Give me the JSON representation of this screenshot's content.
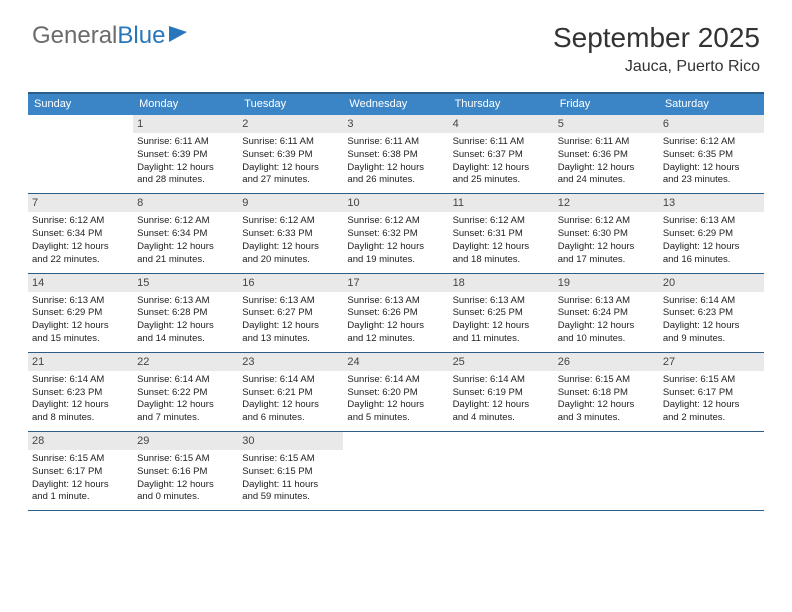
{
  "logo": {
    "text1": "General",
    "text2": "Blue"
  },
  "title": "September 2025",
  "location": "Jauca, Puerto Rico",
  "colors": {
    "header_bg": "#3b85c6",
    "header_border": "#2a5d87",
    "daynum_bg": "#e9e9e9",
    "logo_gray": "#6b6b6b",
    "logo_blue": "#2977bb"
  },
  "day_names": [
    "Sunday",
    "Monday",
    "Tuesday",
    "Wednesday",
    "Thursday",
    "Friday",
    "Saturday"
  ],
  "weeks": [
    [
      {
        "n": "",
        "empty": true
      },
      {
        "n": "1",
        "sr": "Sunrise: 6:11 AM",
        "ss": "Sunset: 6:39 PM",
        "d1": "Daylight: 12 hours",
        "d2": "and 28 minutes."
      },
      {
        "n": "2",
        "sr": "Sunrise: 6:11 AM",
        "ss": "Sunset: 6:39 PM",
        "d1": "Daylight: 12 hours",
        "d2": "and 27 minutes."
      },
      {
        "n": "3",
        "sr": "Sunrise: 6:11 AM",
        "ss": "Sunset: 6:38 PM",
        "d1": "Daylight: 12 hours",
        "d2": "and 26 minutes."
      },
      {
        "n": "4",
        "sr": "Sunrise: 6:11 AM",
        "ss": "Sunset: 6:37 PM",
        "d1": "Daylight: 12 hours",
        "d2": "and 25 minutes."
      },
      {
        "n": "5",
        "sr": "Sunrise: 6:11 AM",
        "ss": "Sunset: 6:36 PM",
        "d1": "Daylight: 12 hours",
        "d2": "and 24 minutes."
      },
      {
        "n": "6",
        "sr": "Sunrise: 6:12 AM",
        "ss": "Sunset: 6:35 PM",
        "d1": "Daylight: 12 hours",
        "d2": "and 23 minutes."
      }
    ],
    [
      {
        "n": "7",
        "sr": "Sunrise: 6:12 AM",
        "ss": "Sunset: 6:34 PM",
        "d1": "Daylight: 12 hours",
        "d2": "and 22 minutes."
      },
      {
        "n": "8",
        "sr": "Sunrise: 6:12 AM",
        "ss": "Sunset: 6:34 PM",
        "d1": "Daylight: 12 hours",
        "d2": "and 21 minutes."
      },
      {
        "n": "9",
        "sr": "Sunrise: 6:12 AM",
        "ss": "Sunset: 6:33 PM",
        "d1": "Daylight: 12 hours",
        "d2": "and 20 minutes."
      },
      {
        "n": "10",
        "sr": "Sunrise: 6:12 AM",
        "ss": "Sunset: 6:32 PM",
        "d1": "Daylight: 12 hours",
        "d2": "and 19 minutes."
      },
      {
        "n": "11",
        "sr": "Sunrise: 6:12 AM",
        "ss": "Sunset: 6:31 PM",
        "d1": "Daylight: 12 hours",
        "d2": "and 18 minutes."
      },
      {
        "n": "12",
        "sr": "Sunrise: 6:12 AM",
        "ss": "Sunset: 6:30 PM",
        "d1": "Daylight: 12 hours",
        "d2": "and 17 minutes."
      },
      {
        "n": "13",
        "sr": "Sunrise: 6:13 AM",
        "ss": "Sunset: 6:29 PM",
        "d1": "Daylight: 12 hours",
        "d2": "and 16 minutes."
      }
    ],
    [
      {
        "n": "14",
        "sr": "Sunrise: 6:13 AM",
        "ss": "Sunset: 6:29 PM",
        "d1": "Daylight: 12 hours",
        "d2": "and 15 minutes."
      },
      {
        "n": "15",
        "sr": "Sunrise: 6:13 AM",
        "ss": "Sunset: 6:28 PM",
        "d1": "Daylight: 12 hours",
        "d2": "and 14 minutes."
      },
      {
        "n": "16",
        "sr": "Sunrise: 6:13 AM",
        "ss": "Sunset: 6:27 PM",
        "d1": "Daylight: 12 hours",
        "d2": "and 13 minutes."
      },
      {
        "n": "17",
        "sr": "Sunrise: 6:13 AM",
        "ss": "Sunset: 6:26 PM",
        "d1": "Daylight: 12 hours",
        "d2": "and 12 minutes."
      },
      {
        "n": "18",
        "sr": "Sunrise: 6:13 AM",
        "ss": "Sunset: 6:25 PM",
        "d1": "Daylight: 12 hours",
        "d2": "and 11 minutes."
      },
      {
        "n": "19",
        "sr": "Sunrise: 6:13 AM",
        "ss": "Sunset: 6:24 PM",
        "d1": "Daylight: 12 hours",
        "d2": "and 10 minutes."
      },
      {
        "n": "20",
        "sr": "Sunrise: 6:14 AM",
        "ss": "Sunset: 6:23 PM",
        "d1": "Daylight: 12 hours",
        "d2": "and 9 minutes."
      }
    ],
    [
      {
        "n": "21",
        "sr": "Sunrise: 6:14 AM",
        "ss": "Sunset: 6:23 PM",
        "d1": "Daylight: 12 hours",
        "d2": "and 8 minutes."
      },
      {
        "n": "22",
        "sr": "Sunrise: 6:14 AM",
        "ss": "Sunset: 6:22 PM",
        "d1": "Daylight: 12 hours",
        "d2": "and 7 minutes."
      },
      {
        "n": "23",
        "sr": "Sunrise: 6:14 AM",
        "ss": "Sunset: 6:21 PM",
        "d1": "Daylight: 12 hours",
        "d2": "and 6 minutes."
      },
      {
        "n": "24",
        "sr": "Sunrise: 6:14 AM",
        "ss": "Sunset: 6:20 PM",
        "d1": "Daylight: 12 hours",
        "d2": "and 5 minutes."
      },
      {
        "n": "25",
        "sr": "Sunrise: 6:14 AM",
        "ss": "Sunset: 6:19 PM",
        "d1": "Daylight: 12 hours",
        "d2": "and 4 minutes."
      },
      {
        "n": "26",
        "sr": "Sunrise: 6:15 AM",
        "ss": "Sunset: 6:18 PM",
        "d1": "Daylight: 12 hours",
        "d2": "and 3 minutes."
      },
      {
        "n": "27",
        "sr": "Sunrise: 6:15 AM",
        "ss": "Sunset: 6:17 PM",
        "d1": "Daylight: 12 hours",
        "d2": "and 2 minutes."
      }
    ],
    [
      {
        "n": "28",
        "sr": "Sunrise: 6:15 AM",
        "ss": "Sunset: 6:17 PM",
        "d1": "Daylight: 12 hours",
        "d2": "and 1 minute."
      },
      {
        "n": "29",
        "sr": "Sunrise: 6:15 AM",
        "ss": "Sunset: 6:16 PM",
        "d1": "Daylight: 12 hours",
        "d2": "and 0 minutes."
      },
      {
        "n": "30",
        "sr": "Sunrise: 6:15 AM",
        "ss": "Sunset: 6:15 PM",
        "d1": "Daylight: 11 hours",
        "d2": "and 59 minutes."
      },
      {
        "n": "",
        "empty": true
      },
      {
        "n": "",
        "empty": true
      },
      {
        "n": "",
        "empty": true
      },
      {
        "n": "",
        "empty": true
      }
    ]
  ]
}
